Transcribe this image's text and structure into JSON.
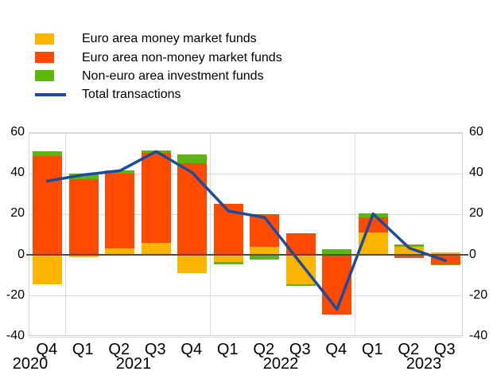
{
  "legend": {
    "items": [
      {
        "label": "Euro area money market funds",
        "color": "#ffb400",
        "swatch": "box"
      },
      {
        "label": "Euro area non-money market funds",
        "color": "#ff4b00",
        "swatch": "box"
      },
      {
        "label": "Non-euro area investment funds",
        "color": "#5db60d",
        "swatch": "box"
      },
      {
        "label": "Total transactions",
        "color": "#1c4b9e",
        "swatch": "line"
      }
    ]
  },
  "chart_data": {
    "type": "bar",
    "subtype": "stacked-bars-with-line",
    "categories": [
      "Q4",
      "Q1",
      "Q2",
      "Q3",
      "Q4",
      "Q1",
      "Q2",
      "Q3",
      "Q4",
      "Q1",
      "Q2",
      "Q3"
    ],
    "year_groups": [
      {
        "label": "2020",
        "start": 0,
        "end": 0
      },
      {
        "label": "2021",
        "start": 1,
        "end": 4
      },
      {
        "label": "2022",
        "start": 5,
        "end": 8
      },
      {
        "label": "2023",
        "start": 9,
        "end": 11
      }
    ],
    "series": [
      {
        "name": "Euro area money market funds",
        "color": "#ffb400",
        "values": [
          -14.4,
          -1.0,
          3.3,
          6.1,
          -8.8,
          -3.3,
          4.2,
          -14.3,
          0.0,
          11.3,
          4.2,
          1.6
        ]
      },
      {
        "name": "Euro area non-money market funds",
        "color": "#ff4b00",
        "values": [
          48.6,
          37.5,
          36.8,
          44.2,
          45.3,
          25.2,
          15.8,
          10.9,
          -29.0,
          7.4,
          -1.5,
          -4.3
        ]
      },
      {
        "name": "Non-euro area investment funds",
        "color": "#5db60d",
        "values": [
          2.3,
          2.5,
          1.5,
          1.0,
          4.1,
          -1.0,
          -2.1,
          -0.7,
          3.0,
          1.7,
          1.3,
          -0.7
        ]
      }
    ],
    "line_series": {
      "name": "Total transactions",
      "color": "#1c4b9e",
      "values": [
        36.4,
        39.5,
        41.5,
        50.9,
        40.5,
        21.7,
        18.5,
        -4.0,
        -26.5,
        20.3,
        3.5,
        -2.6
      ]
    },
    "y_ticks": [
      60,
      40,
      20,
      0,
      -20,
      -40
    ],
    "ylim": [
      -40,
      60
    ],
    "grid": true,
    "legend_position": "top-left",
    "colors": {
      "zero_line": "#4d4d4d",
      "grid": "#dcdcdc"
    }
  }
}
